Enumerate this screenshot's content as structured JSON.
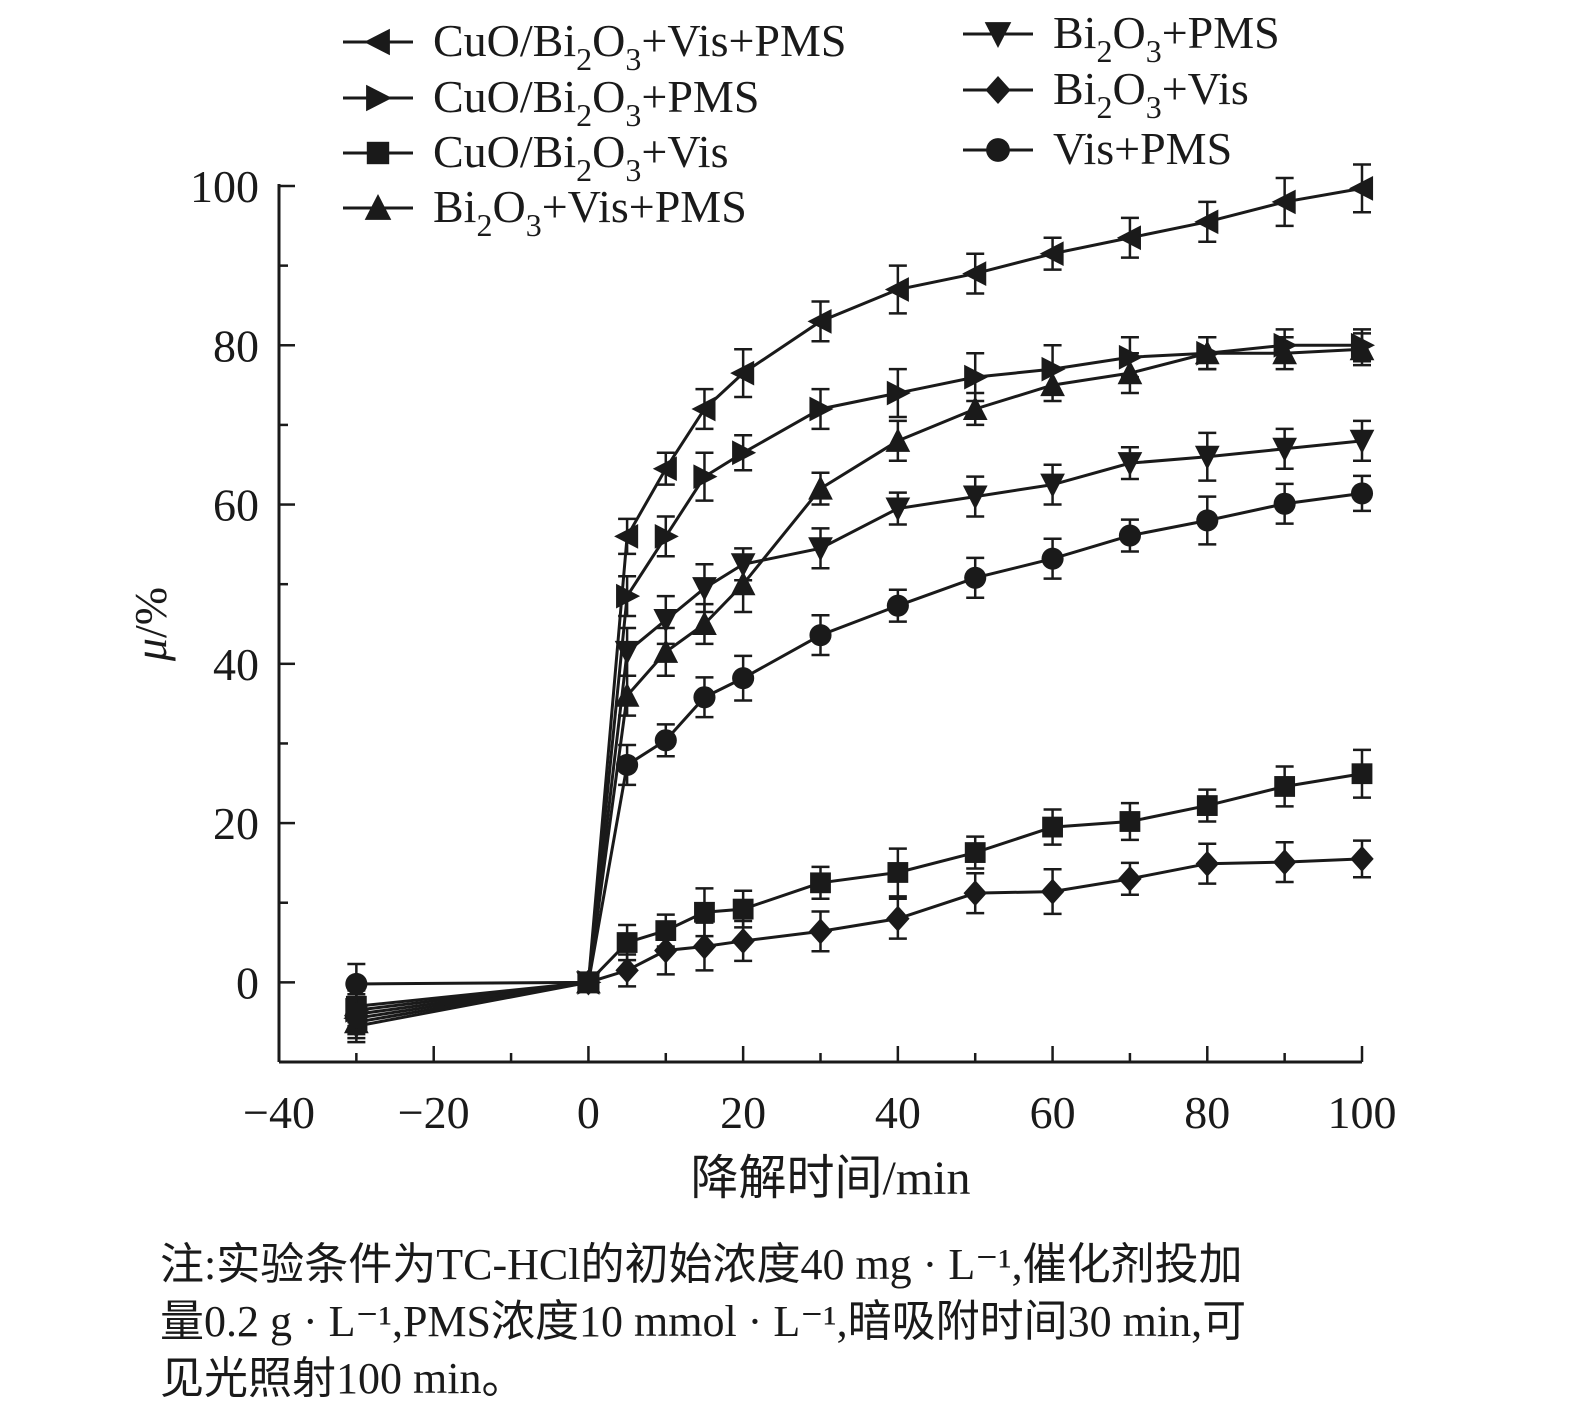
{
  "chart_data": {
    "type": "line",
    "xlabel": "降解时间/min",
    "ylabel_italic": "μ",
    "ylabel_unit": "/%",
    "xlim": [
      -40,
      100
    ],
    "ylim": [
      -10,
      100
    ],
    "xticks": [
      -40,
      -20,
      0,
      20,
      40,
      60,
      80,
      100
    ],
    "yticks": [
      0,
      20,
      40,
      60,
      80,
      100
    ],
    "xtick_labels": [
      "−40",
      "−20",
      "0",
      "20",
      "40",
      "60",
      "80",
      "100"
    ],
    "ytick_labels": [
      "0",
      "20",
      "40",
      "60",
      "80",
      "100"
    ],
    "grid": false,
    "legend_position": "top",
    "x": [
      -30,
      0,
      5,
      10,
      15,
      20,
      30,
      40,
      50,
      60,
      70,
      80,
      90,
      100
    ],
    "series": [
      {
        "name": "CuO/Bi2O3+Vis+PMS",
        "marker": "triangle-left",
        "values": [
          -4.5,
          0,
          56,
          64.5,
          72,
          76.5,
          83,
          87,
          89,
          91.5,
          93.5,
          95.5,
          98,
          99.7
        ],
        "errors": [
          2,
          0,
          2.2,
          2,
          2.5,
          3,
          2.5,
          3,
          2.5,
          2,
          2.5,
          2.5,
          3,
          3
        ]
      },
      {
        "name": "CuO/Bi2O3+PMS",
        "marker": "triangle-right",
        "values": [
          -3.5,
          0,
          48.5,
          56,
          63.5,
          66.5,
          72,
          74,
          76,
          77,
          78.5,
          79,
          80,
          80
        ],
        "errors": [
          2,
          0,
          2.5,
          2.5,
          3,
          2.2,
          2.5,
          3,
          3,
          3,
          2.5,
          2,
          2,
          2
        ]
      },
      {
        "name": "CuO/Bi2O3+Vis",
        "marker": "square",
        "values": [
          -3,
          0,
          5,
          6.5,
          8.8,
          9.2,
          12.5,
          13.8,
          16.3,
          19.5,
          20.2,
          22.2,
          24.6,
          26.2
        ],
        "errors": [
          2,
          0,
          2.2,
          2,
          3,
          2.3,
          2,
          3,
          2,
          2.2,
          2.3,
          2,
          2.5,
          3
        ]
      },
      {
        "name": "Bi2O3+Vis+PMS",
        "marker": "triangle-up",
        "values": [
          -5,
          0,
          36,
          41.5,
          45,
          50,
          62,
          68,
          72,
          75,
          76.5,
          79,
          79,
          79.5
        ],
        "errors": [
          2,
          0,
          2.5,
          3,
          2.5,
          3.5,
          2,
          2.5,
          2,
          2,
          2.5,
          2,
          2,
          2
        ]
      },
      {
        "name": "Bi2O3+PMS",
        "marker": "triangle-down",
        "values": [
          -5.5,
          0,
          41.5,
          45.5,
          49.5,
          52.5,
          54.5,
          59.5,
          61,
          62.5,
          65.2,
          66,
          67,
          68
        ],
        "errors": [
          2,
          0,
          3,
          3,
          3,
          2,
          2.5,
          2,
          2.5,
          2.5,
          2,
          3,
          2.5,
          2.5
        ]
      },
      {
        "name": "Bi2O3+Vis",
        "marker": "diamond",
        "values": [
          -4,
          0,
          1.5,
          4,
          4.5,
          5.2,
          6.4,
          8,
          11.2,
          11.4,
          13,
          14.9,
          15.1,
          15.5
        ],
        "errors": [
          2,
          0,
          2,
          3,
          3,
          2.5,
          2.5,
          2.5,
          2.5,
          2.8,
          2,
          2.5,
          2.5,
          2.3
        ]
      },
      {
        "name": "Vis+PMS",
        "marker": "circle",
        "values": [
          -0.2,
          0,
          27.3,
          30.4,
          35.8,
          38.2,
          43.6,
          47.3,
          50.8,
          53.2,
          56.1,
          58,
          60.1,
          61.4
        ],
        "errors": [
          2.5,
          0,
          2.5,
          2,
          2.5,
          2.8,
          2.5,
          2,
          2.5,
          2.5,
          2,
          3,
          2.5,
          2.2
        ]
      }
    ]
  },
  "legend": {
    "left": [
      {
        "marker": "triangle-left",
        "parts": [
          [
            "CuO/Bi",
            "n"
          ],
          [
            "2",
            "sub"
          ],
          [
            "O",
            "n"
          ],
          [
            "3",
            "sub"
          ],
          [
            "+Vis+PMS",
            "n"
          ]
        ]
      },
      {
        "marker": "triangle-right",
        "parts": [
          [
            "CuO/Bi",
            "n"
          ],
          [
            "2",
            "sub"
          ],
          [
            "O",
            "n"
          ],
          [
            "3",
            "sub"
          ],
          [
            "+PMS",
            "n"
          ]
        ]
      },
      {
        "marker": "square",
        "parts": [
          [
            "CuO/Bi",
            "n"
          ],
          [
            "2",
            "sub"
          ],
          [
            "O",
            "n"
          ],
          [
            "3",
            "sub"
          ],
          [
            "+Vis",
            "n"
          ]
        ]
      },
      {
        "marker": "triangle-up",
        "parts": [
          [
            "Bi",
            "n"
          ],
          [
            "2",
            "sub"
          ],
          [
            "O",
            "n"
          ],
          [
            "3",
            "sub"
          ],
          [
            "+Vis+PMS",
            "n"
          ]
        ]
      }
    ],
    "right": [
      {
        "marker": "triangle-down",
        "parts": [
          [
            "Bi",
            "n"
          ],
          [
            "2",
            "sub"
          ],
          [
            "O",
            "n"
          ],
          [
            "3",
            "sub"
          ],
          [
            "+PMS",
            "n"
          ]
        ]
      },
      {
        "marker": "diamond",
        "parts": [
          [
            "Bi",
            "n"
          ],
          [
            "2",
            "sub"
          ],
          [
            "O",
            "n"
          ],
          [
            "3",
            "sub"
          ],
          [
            "+Vis",
            "n"
          ]
        ]
      },
      {
        "marker": "circle",
        "parts": [
          [
            "Vis+PMS",
            "n"
          ]
        ]
      }
    ]
  },
  "note": {
    "line1": "注:实验条件为TC-HCl的初始浓度40 mg · L⁻¹,催化剂投加",
    "line2": "量0.2 g · L⁻¹,PMS浓度10 mmol · L⁻¹,暗吸附时间30 min,可",
    "line3": "见光照射100 min。"
  },
  "colors": {
    "ink": "#1a1a1a",
    "background": "#ffffff"
  }
}
